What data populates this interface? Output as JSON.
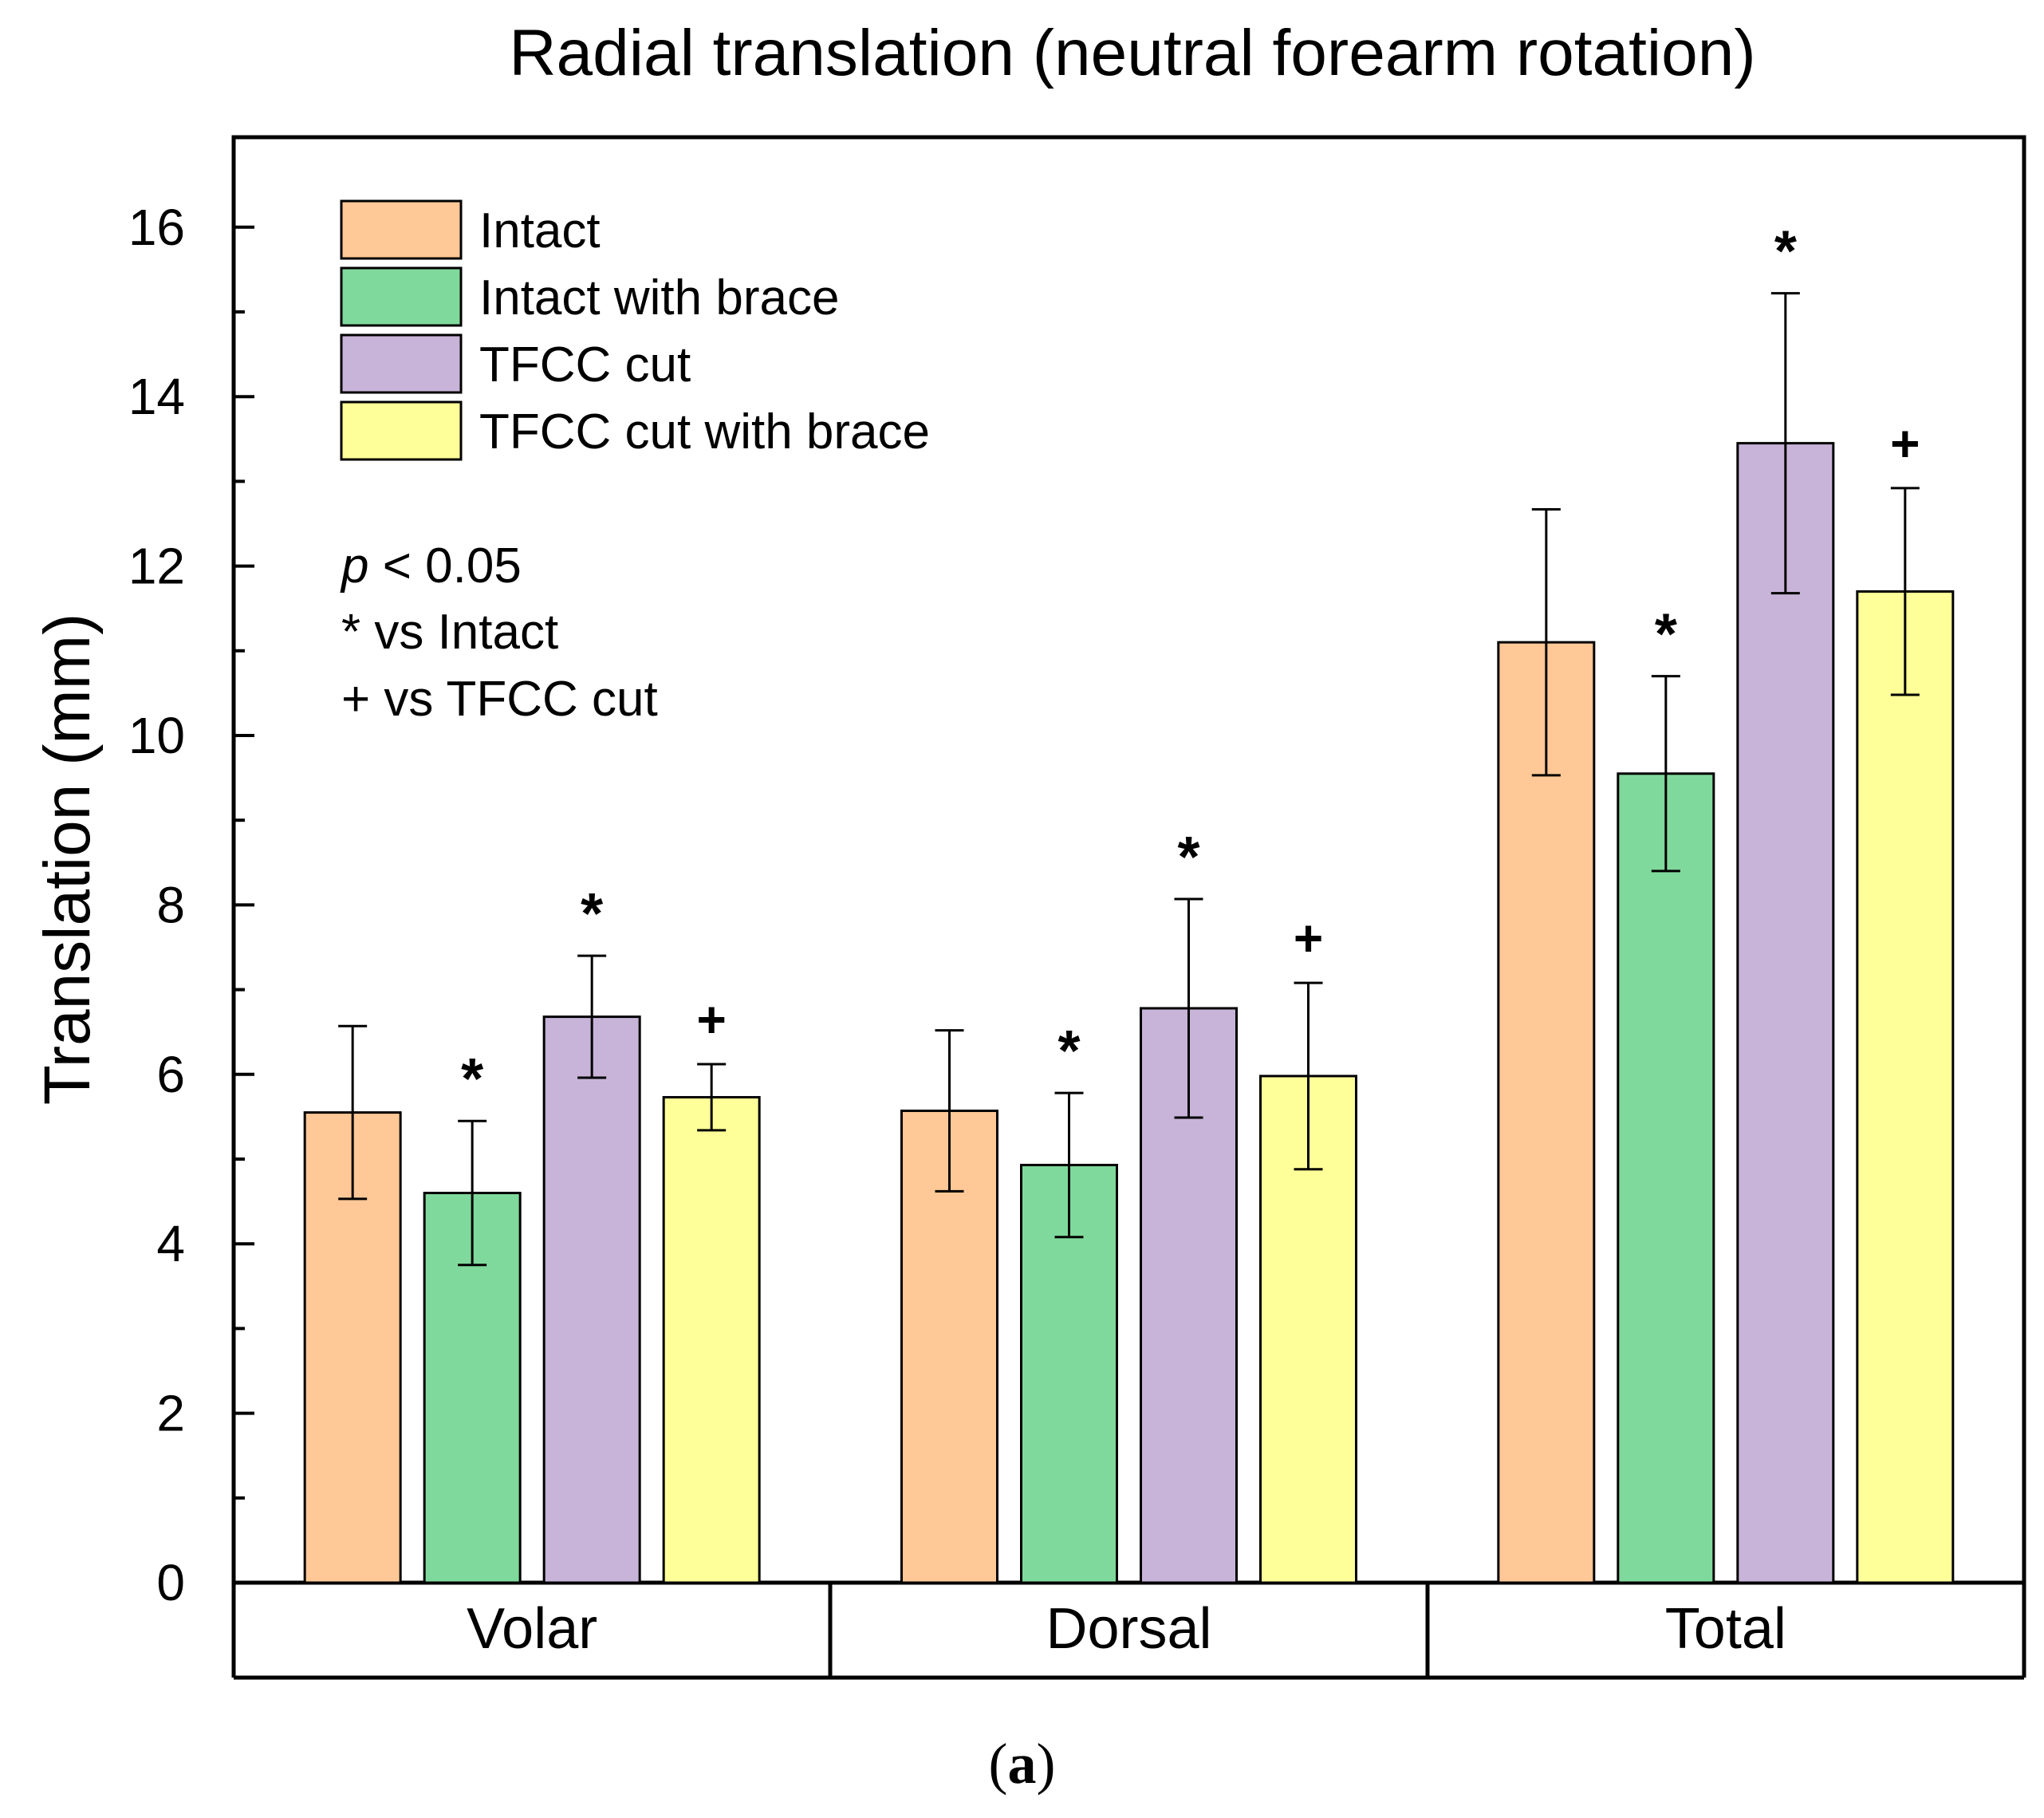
{
  "chart_data": {
    "type": "bar",
    "title": "Radial translation (neutral forearm rotation)",
    "xlabel": "",
    "ylabel": "Translation (mm)",
    "ylim": [
      0,
      17
    ],
    "yticks": [
      0,
      2,
      4,
      6,
      8,
      10,
      12,
      14,
      16
    ],
    "grid": false,
    "legend_position": "top-left",
    "categories": [
      "Volar",
      "Dorsal",
      "Total"
    ],
    "series": [
      {
        "name": "Intact",
        "color": "#FFC896",
        "values": [
          5.55,
          5.57,
          11.1
        ],
        "errors": [
          1.02,
          0.95,
          1.57
        ],
        "markers": [
          "",
          "",
          ""
        ]
      },
      {
        "name": "Intact with brace",
        "color": "#80D99C",
        "values": [
          4.6,
          4.93,
          9.55
        ],
        "errors": [
          0.85,
          0.85,
          1.15
        ],
        "markers": [
          "*",
          "*",
          "*"
        ]
      },
      {
        "name": "TFCC cut",
        "color": "#C8B4D8",
        "values": [
          6.68,
          6.78,
          13.45
        ],
        "errors": [
          0.72,
          1.29,
          1.77
        ],
        "markers": [
          "*",
          "*",
          "*"
        ]
      },
      {
        "name": "TFCC cut with brace",
        "color": "#FFFF99",
        "values": [
          5.73,
          5.98,
          11.7
        ],
        "errors": [
          0.39,
          1.1,
          1.22
        ],
        "markers": [
          "+",
          "+",
          "+"
        ]
      }
    ],
    "annotations": {
      "p_symbol": "p",
      "p_rest": " < 0.05",
      "line2": "* vs Intact",
      "line3": "+ vs TFCC cut"
    }
  },
  "caption": {
    "open": "(",
    "label": "a",
    "close": ")"
  }
}
